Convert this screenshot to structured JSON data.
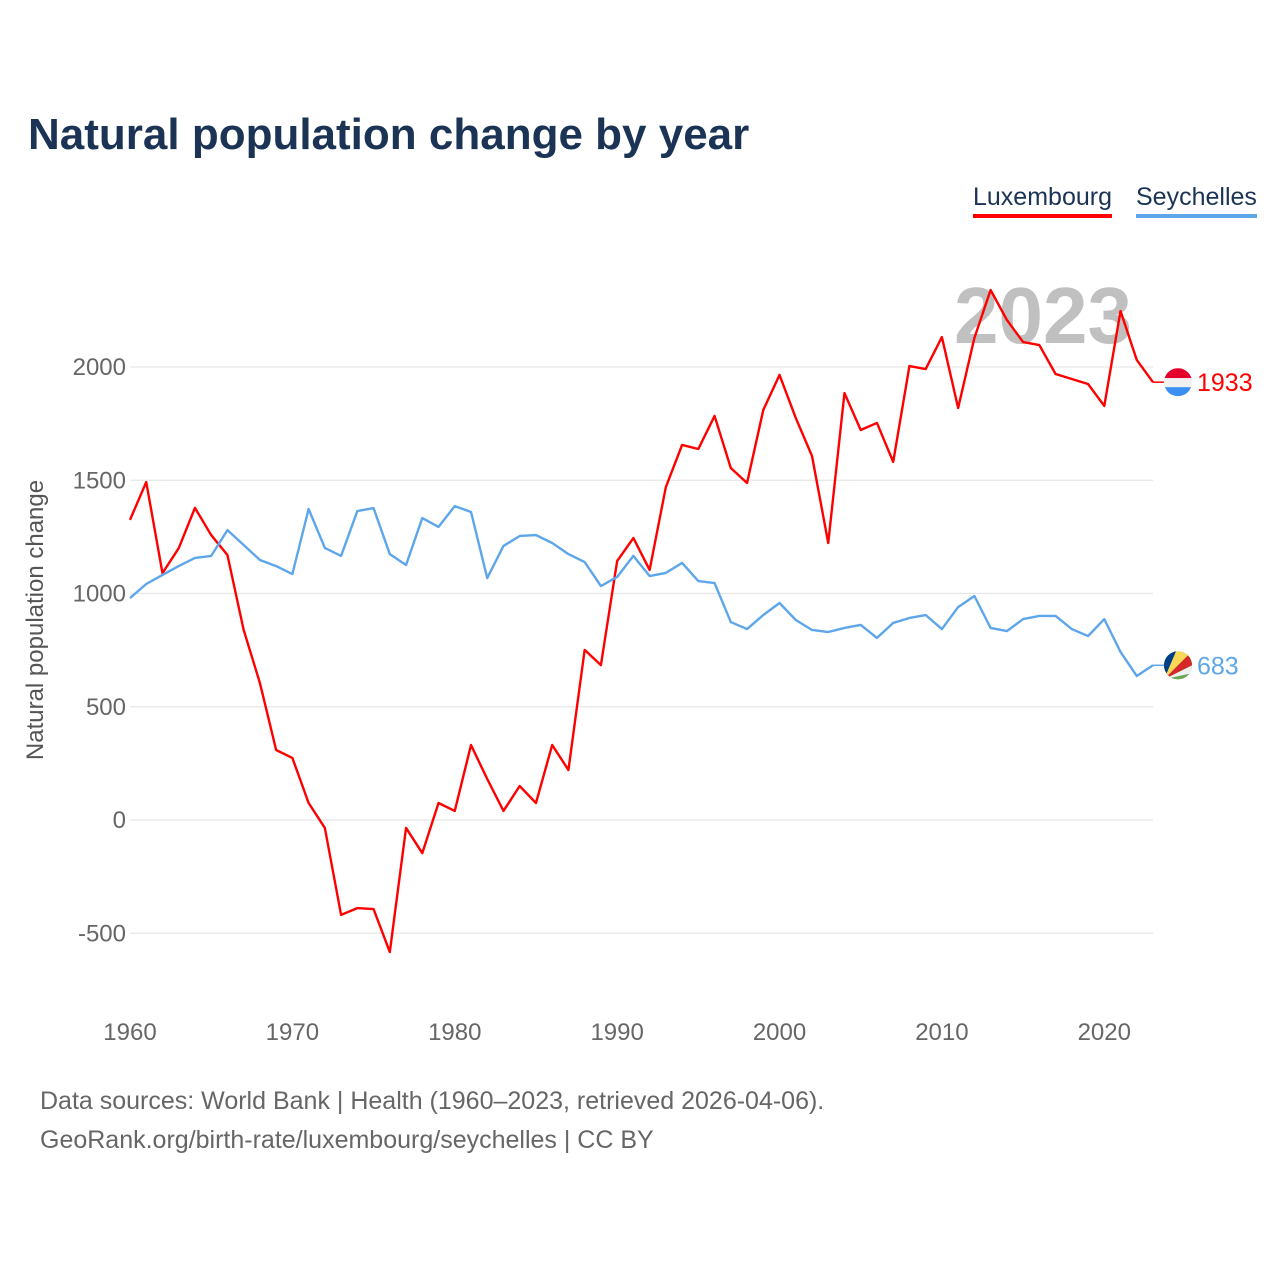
{
  "title": "Natural population change by year",
  "legend": [
    {
      "name": "Luxembourg",
      "color": "#ff0000"
    },
    {
      "name": "Seychelles",
      "color": "#5ea6ea"
    }
  ],
  "year_watermark": "2023",
  "footer": {
    "line1": "Data sources: World Bank | Health (1960–2023, retrieved 2026-04-06).",
    "line2": "GeoRank.org/birth-rate/luxembourg/seychelles | CC BY"
  },
  "chart_data": {
    "type": "line",
    "title": "Natural population change by year",
    "xlabel": "",
    "ylabel": "Natural population change",
    "xlim": [
      1960,
      2023
    ],
    "ylim": [
      -750,
      2450
    ],
    "yticks": [
      -500,
      0,
      500,
      1000,
      1500,
      2000
    ],
    "xticks": [
      1960,
      1970,
      1980,
      1990,
      2000,
      2010,
      2020
    ],
    "grid": true,
    "legend_position": "top-right",
    "x_start": 1960,
    "series": [
      {
        "name": "Luxembourg",
        "color": "#ff0000",
        "end_label": "1933",
        "flag": "luxembourg-flag",
        "values": [
          1325,
          1492,
          1090,
          1200,
          1378,
          1258,
          1170,
          839,
          605,
          309,
          274,
          75,
          -35,
          -419,
          -389,
          -393,
          -583,
          -35,
          -146,
          75,
          40,
          331,
          181,
          40,
          150,
          75,
          331,
          221,
          751,
          684,
          1143,
          1245,
          1104,
          1470,
          1656,
          1638,
          1784,
          1554,
          1488,
          1810,
          1965,
          1775,
          1607,
          1223,
          1885,
          1722,
          1753,
          1581,
          2004,
          1991,
          2132,
          1819,
          2128,
          2340,
          2208,
          2110,
          2097,
          1969,
          1947,
          1925,
          1828,
          2247,
          2031,
          1933
        ]
      },
      {
        "name": "Seychelles",
        "color": "#5ea6ea",
        "end_label": "683",
        "flag": "seychelles-flag",
        "values": [
          980,
          1042,
          1082,
          1121,
          1157,
          1166,
          1280,
          1214,
          1148,
          1121,
          1086,
          1373,
          1201,
          1166,
          1364,
          1377,
          1174,
          1126,
          1333,
          1294,
          1386,
          1360,
          1068,
          1210,
          1254,
          1258,
          1223,
          1174,
          1139,
          1033,
          1073,
          1166,
          1077,
          1091,
          1135,
          1055,
          1046,
          874,
          843,
          905,
          958,
          883,
          839,
          830,
          848,
          861,
          804,
          870,
          892,
          905,
          843,
          940,
          989,
          848,
          834,
          887,
          901,
          901,
          843,
          812,
          887,
          742,
          636,
          683
        ]
      }
    ]
  }
}
